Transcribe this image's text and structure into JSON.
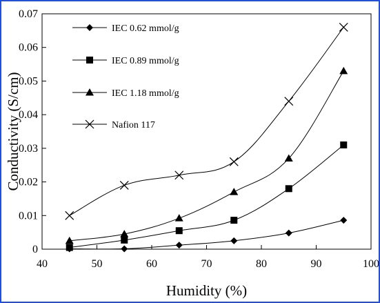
{
  "chart_data": {
    "type": "line",
    "title": "",
    "xlabel": "Humidity (%)",
    "ylabel": "Conductivity (S/cm)",
    "xlim": [
      40,
      100
    ],
    "ylim": [
      0,
      0.07
    ],
    "x_ticks": [
      "40",
      "50",
      "60",
      "70",
      "80",
      "90",
      "100"
    ],
    "y_ticks": [
      "0",
      "0.01",
      "0.02",
      "0.03",
      "0.04",
      "0.05",
      "0.06",
      "0.07"
    ],
    "grid": false,
    "legend_position": "top-left",
    "series": [
      {
        "name": "IEC 0.62 mmol/g",
        "marker": "diamond",
        "color": "#000000",
        "x": [
          45,
          55,
          65,
          75,
          85,
          95
        ],
        "y": [
          0.0001,
          0.0001,
          0.0012,
          0.0025,
          0.0048,
          0.0086
        ]
      },
      {
        "name": "IEC 0.89 mmol/g",
        "marker": "square",
        "color": "#000000",
        "x": [
          45,
          55,
          65,
          75,
          85,
          95
        ],
        "y": [
          0.0005,
          0.0027,
          0.0055,
          0.0086,
          0.018,
          0.031
        ]
      },
      {
        "name": "IEC 1.18 mmol/g",
        "marker": "triangle",
        "color": "#000000",
        "x": [
          45,
          55,
          65,
          75,
          85,
          95
        ],
        "y": [
          0.0025,
          0.0045,
          0.0092,
          0.017,
          0.027,
          0.053
        ]
      },
      {
        "name": "Nafion 117",
        "marker": "x",
        "color": "#000000",
        "x": [
          45,
          55,
          65,
          75,
          85,
          95
        ],
        "y": [
          0.01,
          0.019,
          0.022,
          0.026,
          0.044,
          0.066
        ]
      }
    ]
  }
}
